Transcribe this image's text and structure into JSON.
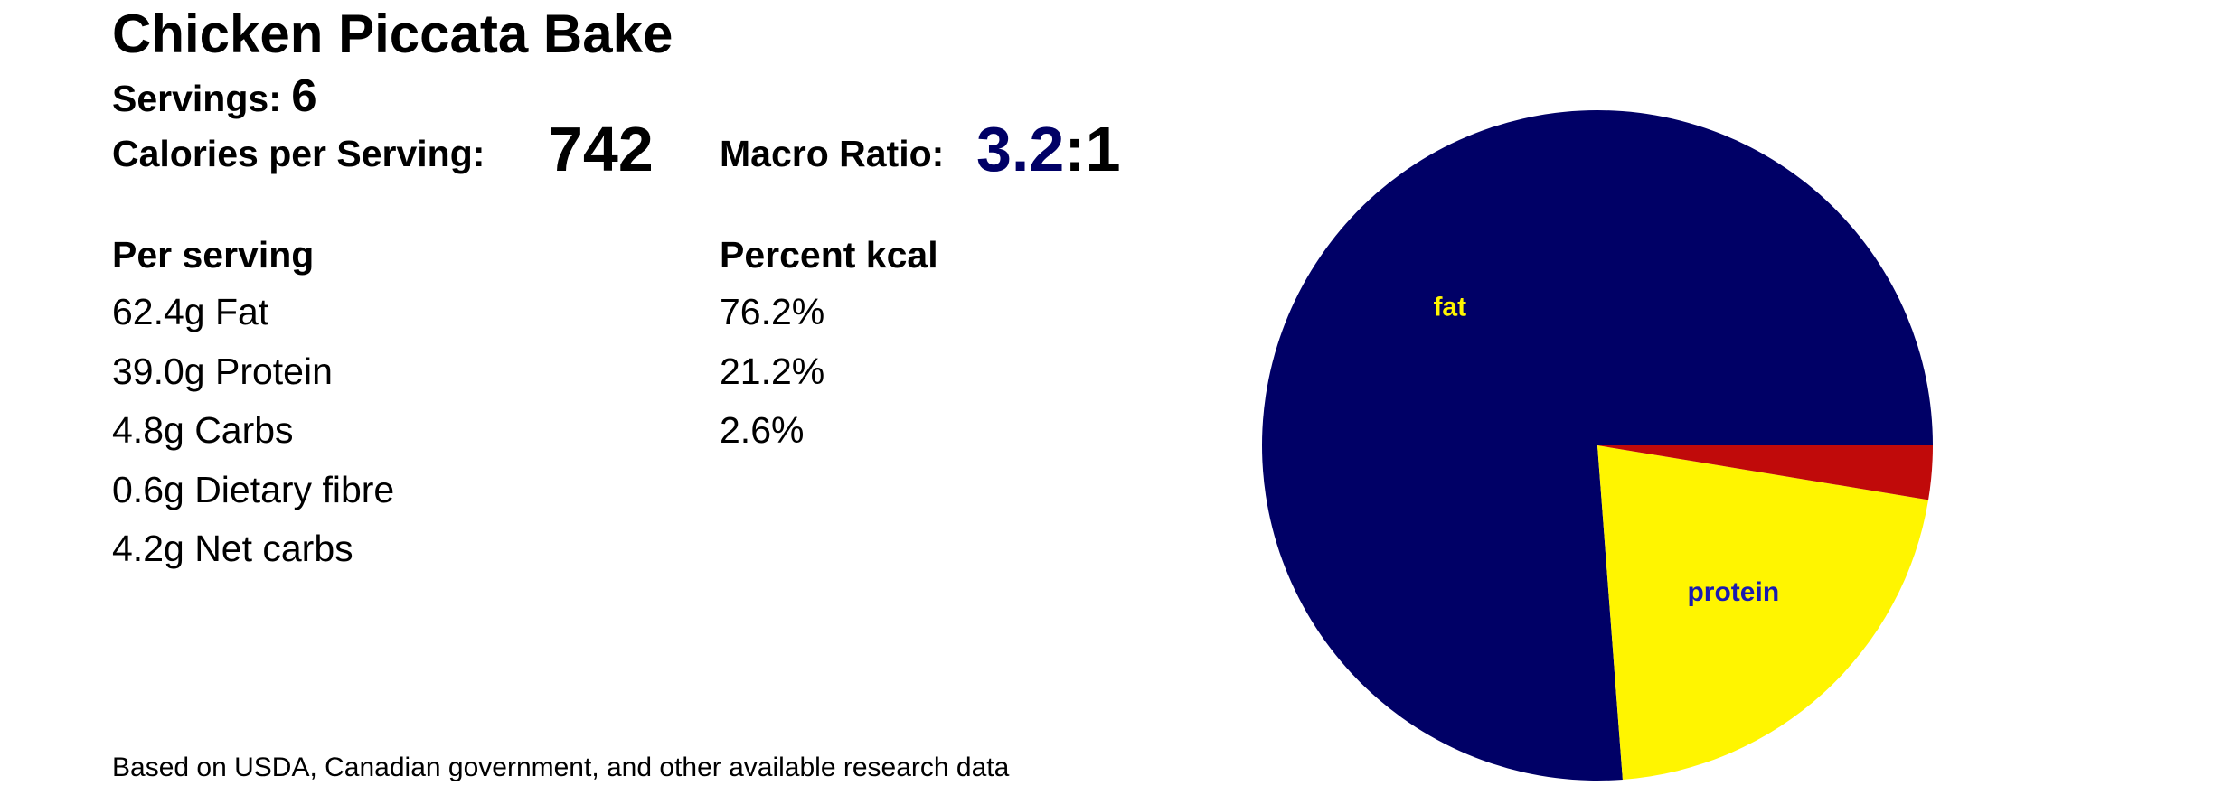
{
  "title": "Chicken Piccata Bake",
  "servings": {
    "label": "Servings:",
    "value": "6"
  },
  "calories": {
    "label": "Calories per Serving:",
    "value": "742"
  },
  "macro_ratio": {
    "label": "Macro Ratio:",
    "value": "3.2",
    "suffix": ":1"
  },
  "per_serving": {
    "header": "Per serving",
    "rows": [
      "62.4g Fat",
      "39.0g Protein",
      "4.8g Carbs",
      "0.6g Dietary fibre",
      "4.2g Net carbs"
    ]
  },
  "percent_kcal": {
    "header": "Percent kcal",
    "rows": [
      "76.2%",
      "21.2%",
      "2.6%"
    ]
  },
  "footer": "Based on USDA, Canadian government, and other available research data",
  "chart_data": {
    "type": "pie",
    "categories": [
      "fat",
      "protein",
      null
    ],
    "values": [
      76.2,
      21.2,
      2.6
    ],
    "colors": [
      "#000066",
      "#fff500",
      "#c00a0a"
    ],
    "label_colors": [
      "#fff500",
      "#1a1ab0",
      null
    ],
    "start_angle": 0,
    "direction": "counterclockwise"
  }
}
